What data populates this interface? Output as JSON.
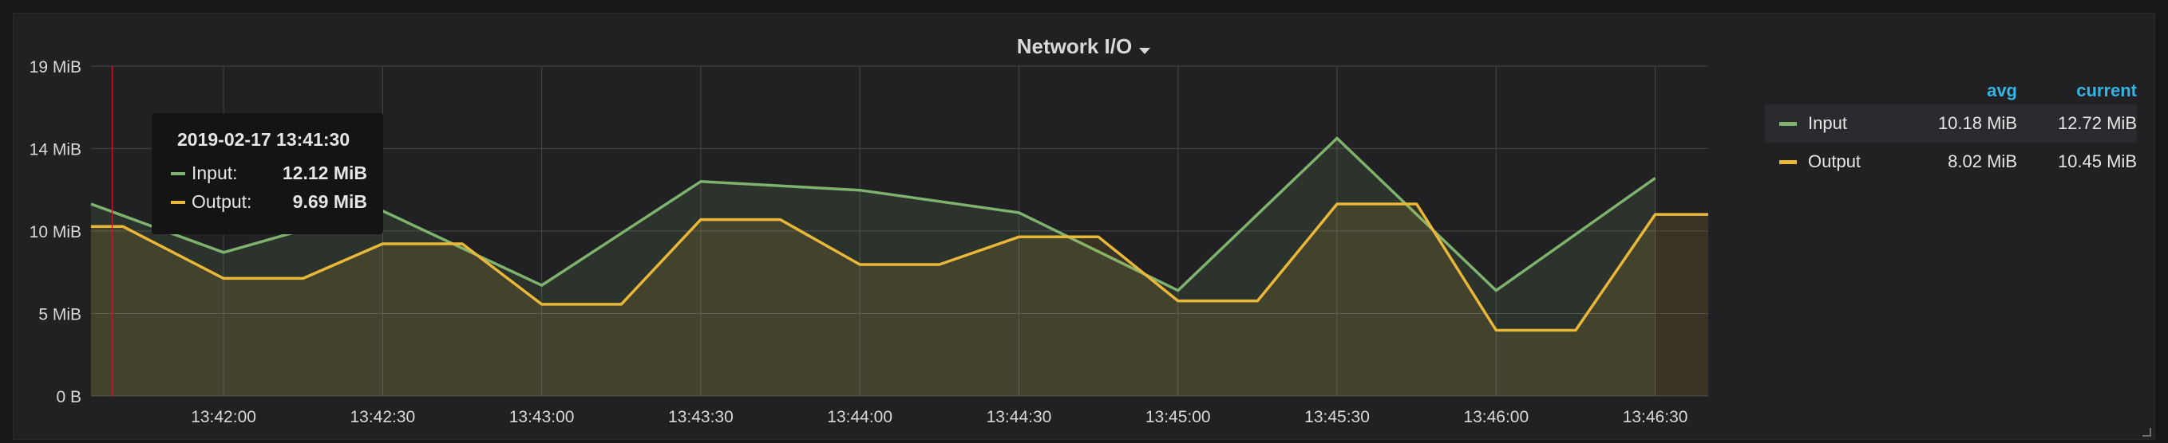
{
  "panel": {
    "title": "Network I/O",
    "caret_icon": "caret-down-icon"
  },
  "colors": {
    "input": "#7eb26d",
    "output": "#eab839",
    "grid": "#464649",
    "axis_text": "#d8d9da",
    "legend_header": "#33b5e5",
    "cursor": "#c4162a"
  },
  "legend": {
    "columns": [
      "avg",
      "current"
    ],
    "rows": [
      {
        "name": "Input",
        "avg": "10.18 MiB",
        "current": "12.72 MiB",
        "color": "#7eb26d"
      },
      {
        "name": "Output",
        "avg": "8.02 MiB",
        "current": "10.45 MiB",
        "color": "#eab839"
      }
    ]
  },
  "tooltip": {
    "time": "2019-02-17 13:41:30",
    "rows": [
      {
        "label": "Input:",
        "value": "12.12 MiB",
        "color": "#7eb26d"
      },
      {
        "label": "Output:",
        "value": "9.69 MiB",
        "color": "#eab839"
      }
    ]
  },
  "chart_data": {
    "type": "area",
    "title": "Network I/O",
    "xlabel": "",
    "ylabel": "",
    "x_ticks": [
      "13:42:00",
      "13:42:30",
      "13:43:00",
      "13:43:30",
      "13:44:00",
      "13:44:30",
      "13:45:00",
      "13:45:30",
      "13:46:00",
      "13:46:30"
    ],
    "y_ticks": [
      "0 B",
      "5 MiB",
      "10 MiB",
      "14 MiB",
      "19 MiB"
    ],
    "y_tick_values": [
      0,
      4.77,
      9.54,
      14.31,
      19.07
    ],
    "ylim": [
      0,
      19.07
    ],
    "xlim": [
      "13:41:35",
      "13:46:40"
    ],
    "grid": true,
    "legend_position": "right",
    "cursor_time": "13:41:39",
    "series": [
      {
        "name": "Input",
        "color": "#7eb26d",
        "points": [
          [
            "13:41:35",
            11.1
          ],
          [
            "13:42:00",
            8.3
          ],
          [
            "13:42:15",
            9.6
          ],
          [
            "13:42:30",
            10.7
          ],
          [
            "13:43:00",
            6.4
          ],
          [
            "13:43:30",
            12.4
          ],
          [
            "13:44:00",
            11.9
          ],
          [
            "13:44:30",
            10.6
          ],
          [
            "13:45:00",
            6.1
          ],
          [
            "13:45:30",
            14.9
          ],
          [
            "13:46:00",
            6.1
          ],
          [
            "13:46:30",
            12.6
          ]
        ]
      },
      {
        "name": "Output",
        "color": "#eab839",
        "points": [
          [
            "13:41:35",
            9.8
          ],
          [
            "13:41:41",
            9.8
          ],
          [
            "13:42:00",
            6.8
          ],
          [
            "13:42:15",
            6.8
          ],
          [
            "13:42:30",
            8.8
          ],
          [
            "13:42:45",
            8.8
          ],
          [
            "13:43:00",
            5.3
          ],
          [
            "13:43:15",
            5.3
          ],
          [
            "13:43:30",
            10.2
          ],
          [
            "13:43:45",
            10.2
          ],
          [
            "13:44:00",
            7.6
          ],
          [
            "13:44:15",
            7.6
          ],
          [
            "13:44:30",
            9.2
          ],
          [
            "13:44:45",
            9.2
          ],
          [
            "13:45:00",
            5.5
          ],
          [
            "13:45:15",
            5.5
          ],
          [
            "13:45:30",
            11.1
          ],
          [
            "13:45:45",
            11.1
          ],
          [
            "13:46:00",
            3.8
          ],
          [
            "13:46:15",
            3.8
          ],
          [
            "13:46:30",
            10.5
          ],
          [
            "13:46:40",
            10.5
          ]
        ]
      }
    ]
  }
}
